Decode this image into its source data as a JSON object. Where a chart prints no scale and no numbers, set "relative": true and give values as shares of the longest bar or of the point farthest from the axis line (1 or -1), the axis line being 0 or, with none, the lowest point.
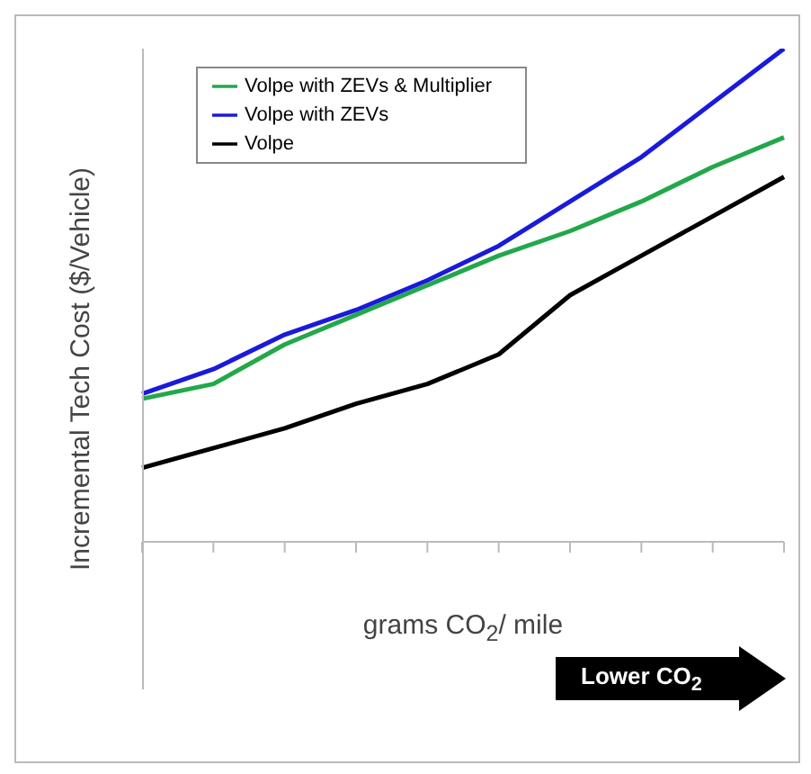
{
  "chart_data": {
    "type": "line",
    "relative": true,
    "xlabel": "grams CO$_{2}$/ mile",
    "ylabel": "Incremental Tech Cost ($/Vehicle)",
    "annotations": [
      "Lower CO$_{2}$"
    ],
    "categories": [
      null,
      null,
      null,
      null,
      null,
      null,
      null,
      null,
      null,
      null
    ],
    "legend": "top left",
    "grid": false,
    "marker": "none",
    "line_style": "solid",
    "series": [
      {
        "name": "Volpe with ZEVs & Multiplier",
        "color": "#22a84a",
        "values": [
          0.29,
          0.32,
          0.4,
          0.46,
          0.52,
          0.58,
          0.63,
          0.69,
          0.76,
          0.82
        ]
      },
      {
        "name": "Volpe with ZEVs",
        "color": "#1a1adb",
        "values": [
          0.3,
          0.35,
          0.42,
          0.47,
          0.53,
          0.6,
          0.69,
          0.78,
          0.89,
          1
        ]
      },
      {
        "name": "Volpe",
        "color": "#000000",
        "values": [
          0.15,
          0.19,
          0.23,
          0.28,
          0.32,
          0.38,
          0.5,
          0.58,
          0.66,
          0.74
        ]
      }
    ]
  }
}
